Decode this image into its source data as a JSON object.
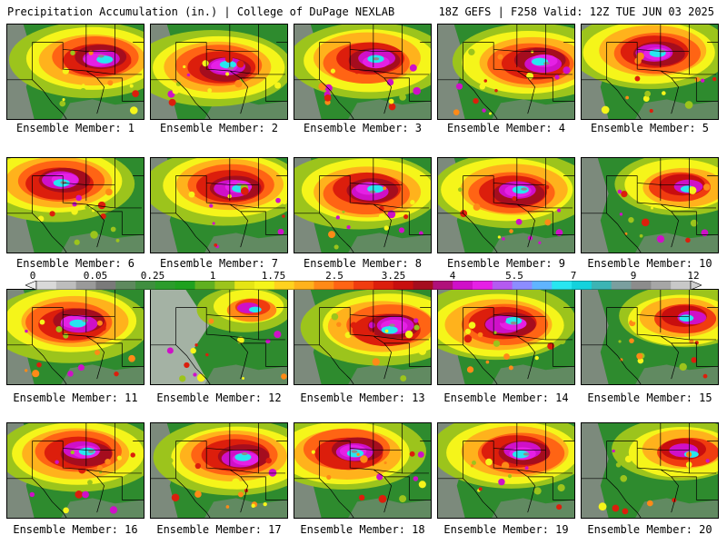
{
  "header": {
    "title": "Precipitation Accumulation (in.) | College of DuPage NEXLAB",
    "run_info": "18Z GEFS | F258 Valid: 12Z TUE JUN 03 2025"
  },
  "colorbar": {
    "tick_labels": [
      "0",
      "0.05",
      "0.25",
      "1",
      "1.75",
      "2.5",
      "3.25",
      "4",
      "5.5",
      "7",
      "9",
      "12"
    ],
    "colors": [
      "#d9d9d9",
      "#bdbdbd",
      "#9a9a9a",
      "#7a7a7a",
      "#5e8a5e",
      "#3f8f3f",
      "#2c9c2c",
      "#1fa11f",
      "#60b020",
      "#9cc41c",
      "#e5e515",
      "#f5f51a",
      "#ffd21f",
      "#ffb21c",
      "#ff8a17",
      "#ff6414",
      "#f03c0f",
      "#dc1e0c",
      "#c80e0e",
      "#a50d1e",
      "#b0107a",
      "#cf10c8",
      "#e520e5",
      "#b45af0",
      "#8c8cff",
      "#60b4ff",
      "#28e6f0",
      "#14d2dc",
      "#3cb4b4",
      "#7a9f9f",
      "#8c8c8c",
      "#a6a6a6",
      "#c8c8c8"
    ]
  },
  "panels": [
    {
      "label": "Ensemble Member: 1",
      "wet": "high",
      "hot": [
        0.72,
        0.35
      ]
    },
    {
      "label": "Ensemble Member: 2",
      "wet": "high",
      "hot": [
        0.58,
        0.45
      ]
    },
    {
      "label": "Ensemble Member: 3",
      "wet": "high",
      "hot": [
        0.62,
        0.38
      ]
    },
    {
      "label": "Ensemble Member: 4",
      "wet": "high",
      "hot": [
        0.78,
        0.4
      ]
    },
    {
      "label": "Ensemble Member: 5",
      "wet": "high",
      "hot": [
        0.6,
        0.3
      ]
    },
    {
      "label": "Ensemble Member: 6",
      "wet": "high",
      "hot": [
        0.45,
        0.25
      ]
    },
    {
      "label": "Ensemble Member: 7",
      "wet": "high",
      "hot": [
        0.65,
        0.3
      ]
    },
    {
      "label": "Ensemble Member: 8",
      "wet": "high",
      "hot": [
        0.6,
        0.35
      ]
    },
    {
      "label": "Ensemble Member: 9",
      "wet": "high",
      "hot": [
        0.62,
        0.35
      ]
    },
    {
      "label": "Ensemble Member: 10",
      "wet": "mid",
      "hot": [
        0.78,
        0.3
      ]
    },
    {
      "label": "Ensemble Member: 11",
      "wet": "high",
      "hot": [
        0.55,
        0.35
      ]
    },
    {
      "label": "Ensemble Member: 12",
      "wet": "low",
      "hot": [
        0.75,
        0.2
      ]
    },
    {
      "label": "Ensemble Member: 13",
      "wet": "high",
      "hot": [
        0.75,
        0.4
      ]
    },
    {
      "label": "Ensemble Member: 14",
      "wet": "high",
      "hot": [
        0.55,
        0.35
      ]
    },
    {
      "label": "Ensemble Member: 15",
      "wet": "mid",
      "hot": [
        0.8,
        0.3
      ]
    },
    {
      "label": "Ensemble Member: 16",
      "wet": "high",
      "hot": [
        0.6,
        0.3
      ]
    },
    {
      "label": "Ensemble Member: 17",
      "wet": "high",
      "hot": [
        0.7,
        0.35
      ]
    },
    {
      "label": "Ensemble Member: 18",
      "wet": "high",
      "hot": [
        0.48,
        0.3
      ]
    },
    {
      "label": "Ensemble Member: 19",
      "wet": "high",
      "hot": [
        0.65,
        0.3
      ]
    },
    {
      "label": "Ensemble Member: 20",
      "wet": "mid",
      "hot": [
        0.8,
        0.3
      ]
    }
  ]
}
